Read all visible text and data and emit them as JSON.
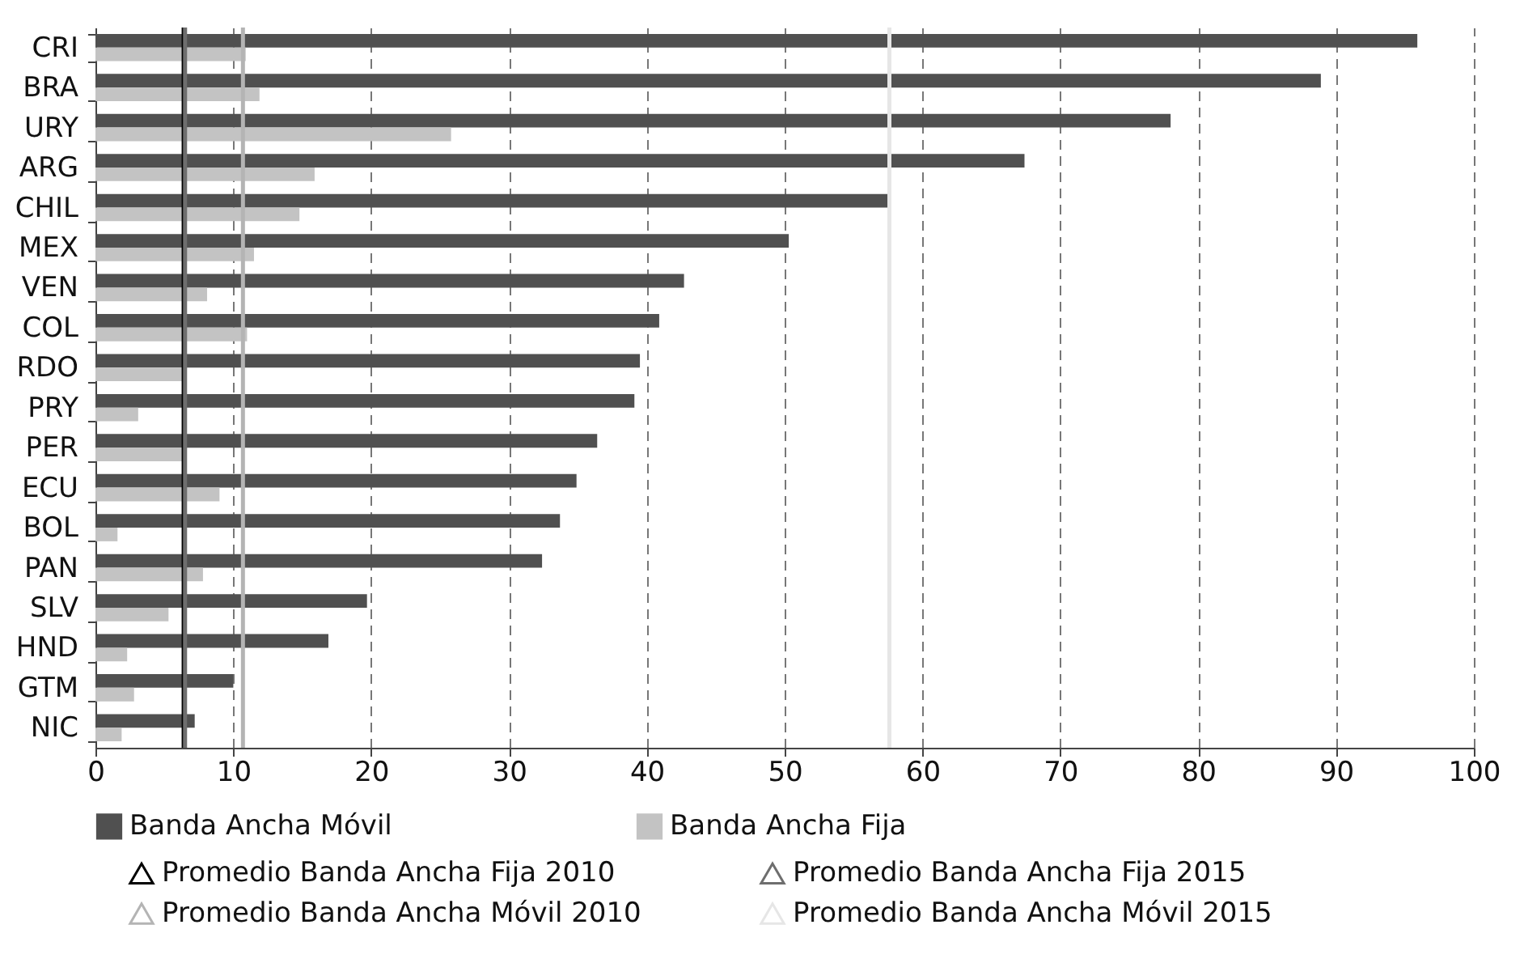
{
  "chart_data": {
    "type": "bar",
    "orientation": "horizontal",
    "categories": [
      "CRI",
      "BRA",
      "URY",
      "ARG",
      "CHIL",
      "MEX",
      "VEN",
      "COL",
      "RDO",
      "PRY",
      "PER",
      "ECU",
      "BOL",
      "PAN",
      "SLV",
      "HND",
      "GTM",
      "NIC"
    ],
    "series": [
      {
        "name": "Banda Ancha Móvil",
        "color": "#505050",
        "values": [
          95.9,
          88.9,
          78.0,
          67.4,
          57.5,
          50.3,
          42.7,
          40.9,
          39.5,
          39.1,
          36.4,
          34.9,
          33.7,
          32.4,
          19.7,
          16.9,
          10.0,
          7.2
        ]
      },
      {
        "name": "Banda Ancha Fija",
        "color": "#c3c3c3",
        "values": [
          10.9,
          11.9,
          25.8,
          15.9,
          14.8,
          11.5,
          8.1,
          11.0,
          6.3,
          3.1,
          6.3,
          9.0,
          1.6,
          7.8,
          5.3,
          2.3,
          2.8,
          1.9
        ]
      }
    ],
    "xlim": [
      0,
      100
    ],
    "xticks": [
      0,
      10,
      20,
      30,
      40,
      50,
      60,
      70,
      80,
      90,
      100
    ],
    "grid": "x",
    "legend": "bottom",
    "ref_lines": [
      {
        "axis": "x",
        "value": 6.4,
        "label": "Promedio Banda Ancha Fija 2010",
        "color": "#000000"
      },
      {
        "axis": "x",
        "value": 6.5,
        "label": "Promedio Banda Ancha Fija 2015",
        "color": "#6e6e6e"
      },
      {
        "axis": "x",
        "value": 10.7,
        "label": "Promedio Banda Ancha Móvil 2010",
        "color": "#b4b4b4"
      },
      {
        "axis": "x",
        "value": 57.6,
        "label": "Promedio Banda Ancha Móvil 2015",
        "color": "#e6e6e6"
      }
    ]
  }
}
